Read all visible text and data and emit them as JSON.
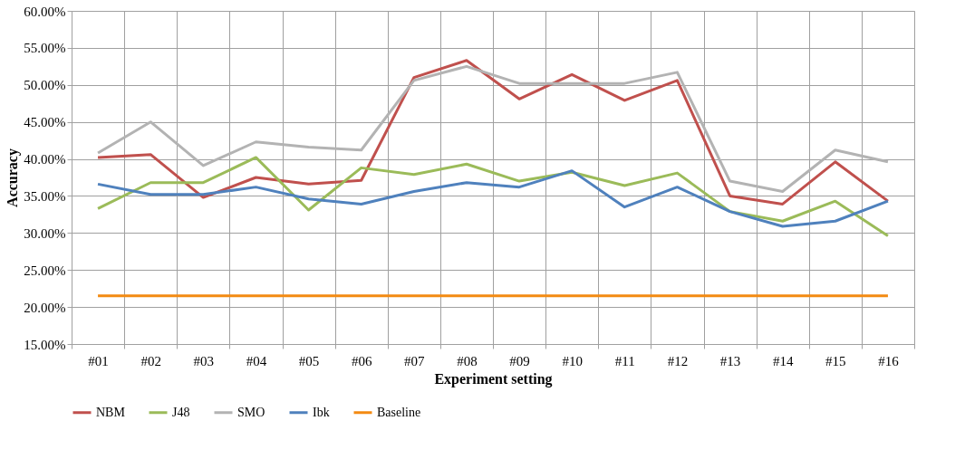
{
  "chart_data": {
    "type": "line",
    "xlabel": "Experiment setting",
    "ylabel": "Accuracy",
    "categories": [
      "#01",
      "#02",
      "#03",
      "#04",
      "#05",
      "#06",
      "#07",
      "#08",
      "#09",
      "#10",
      "#11",
      "#12",
      "#13",
      "#14",
      "#15",
      "#16"
    ],
    "series": [
      {
        "name": "NBM",
        "color": "#c0504d",
        "values": [
          40.2,
          40.6,
          34.8,
          37.5,
          36.6,
          37.1,
          51.0,
          53.3,
          48.1,
          51.4,
          47.9,
          50.6,
          35.0,
          33.9,
          39.6,
          34.3
        ]
      },
      {
        "name": "J48",
        "color": "#9bbb59",
        "values": [
          33.3,
          36.8,
          36.8,
          40.2,
          33.1,
          38.8,
          37.9,
          39.3,
          37.0,
          38.2,
          36.4,
          38.1,
          32.9,
          31.6,
          34.3,
          29.6
        ]
      },
      {
        "name": "SMO",
        "color": "#b3b3b3",
        "values": [
          40.8,
          45.0,
          39.1,
          42.3,
          41.6,
          41.2,
          50.6,
          52.5,
          50.2,
          50.2,
          50.2,
          51.7,
          37.0,
          35.6,
          41.2,
          39.6
        ]
      },
      {
        "name": "Ibk",
        "color": "#4f81bd",
        "values": [
          36.6,
          35.2,
          35.2,
          36.2,
          34.6,
          33.9,
          35.6,
          36.8,
          36.2,
          38.4,
          33.5,
          36.2,
          32.9,
          30.9,
          31.6,
          34.3
        ]
      },
      {
        "name": "Baseline",
        "color": "#f38a12",
        "values": [
          21.5,
          21.5,
          21.5,
          21.5,
          21.5,
          21.5,
          21.5,
          21.5,
          21.5,
          21.5,
          21.5,
          21.5,
          21.5,
          21.5,
          21.5,
          21.5
        ]
      }
    ],
    "ylim": [
      15,
      60
    ],
    "yticks": [
      {
        "value": 15,
        "label": "15.00%"
      },
      {
        "value": 20,
        "label": "20.00%"
      },
      {
        "value": 25,
        "label": "25.00%"
      },
      {
        "value": 30,
        "label": "30.00%"
      },
      {
        "value": 35,
        "label": "35.00%"
      },
      {
        "value": 40,
        "label": "40.00%"
      },
      {
        "value": 45,
        "label": "45.00%"
      },
      {
        "value": 50,
        "label": "50.00%"
      },
      {
        "value": 55,
        "label": "55.00%"
      },
      {
        "value": 60,
        "label": "60.00%"
      }
    ],
    "grid": true,
    "legend": "bottom",
    "marker": "none",
    "line_style": "solid"
  }
}
